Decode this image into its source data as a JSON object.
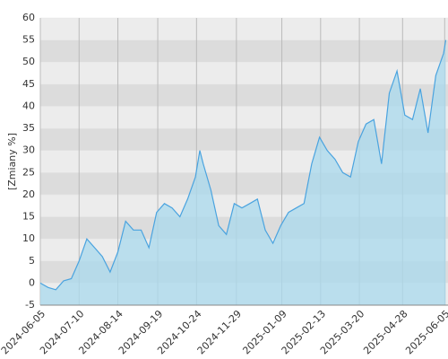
{
  "chart_data": {
    "type": "area",
    "y_label": "[Zmiany %]",
    "x": [
      "2024-06-05",
      "2024-06-12",
      "2024-06-19",
      "2024-06-26",
      "2024-07-03",
      "2024-07-10",
      "2024-07-17",
      "2024-07-24",
      "2024-07-31",
      "2024-08-07",
      "2024-08-14",
      "2024-08-21",
      "2024-08-28",
      "2024-09-04",
      "2024-09-11",
      "2024-09-18",
      "2024-09-25",
      "2024-10-02",
      "2024-10-09",
      "2024-10-16",
      "2024-10-23",
      "2024-10-27",
      "2024-10-30",
      "2024-11-06",
      "2024-11-13",
      "2024-11-20",
      "2024-11-27",
      "2024-12-04",
      "2024-12-11",
      "2024-12-18",
      "2024-12-25",
      "2025-01-01",
      "2025-01-08",
      "2025-01-15",
      "2025-01-22",
      "2025-01-29",
      "2025-02-05",
      "2025-02-12",
      "2025-02-19",
      "2025-02-26",
      "2025-03-05",
      "2025-03-12",
      "2025-03-19",
      "2025-03-26",
      "2025-04-02",
      "2025-04-09",
      "2025-04-16",
      "2025-04-23",
      "2025-04-30",
      "2025-05-07",
      "2025-05-14",
      "2025-05-21",
      "2025-05-28",
      "2025-06-04",
      "2025-06-06"
    ],
    "values": [
      0,
      -1,
      -1.5,
      0.5,
      1,
      5,
      10,
      8,
      6,
      2.5,
      7,
      14,
      12,
      12,
      8,
      16,
      18,
      17,
      15,
      19,
      24,
      30,
      27,
      21,
      13,
      11,
      18,
      17,
      18,
      19,
      12,
      9,
      13,
      16,
      17,
      18,
      27,
      33,
      30,
      28,
      25,
      24,
      32,
      36,
      37,
      27,
      43,
      48,
      38,
      37,
      44,
      34,
      47,
      52,
      55
    ],
    "color": "#4aa3df",
    "fill": "#a9d9ee",
    "xlim": [
      "2024-06-05",
      "2025-06-08"
    ],
    "xticks": [
      "2024-06-05",
      "2024-07-10",
      "2024-08-14",
      "2024-09-19",
      "2024-10-24",
      "2024-11-29",
      "2025-01-09",
      "2025-02-13",
      "2025-03-20",
      "2025-04-28",
      "2025-06-05"
    ],
    "ylim": [
      -5,
      60
    ],
    "yticks": [
      -5,
      0,
      5,
      10,
      15,
      20,
      25,
      30,
      35,
      40,
      45,
      50,
      55,
      60
    ],
    "grid": true
  }
}
